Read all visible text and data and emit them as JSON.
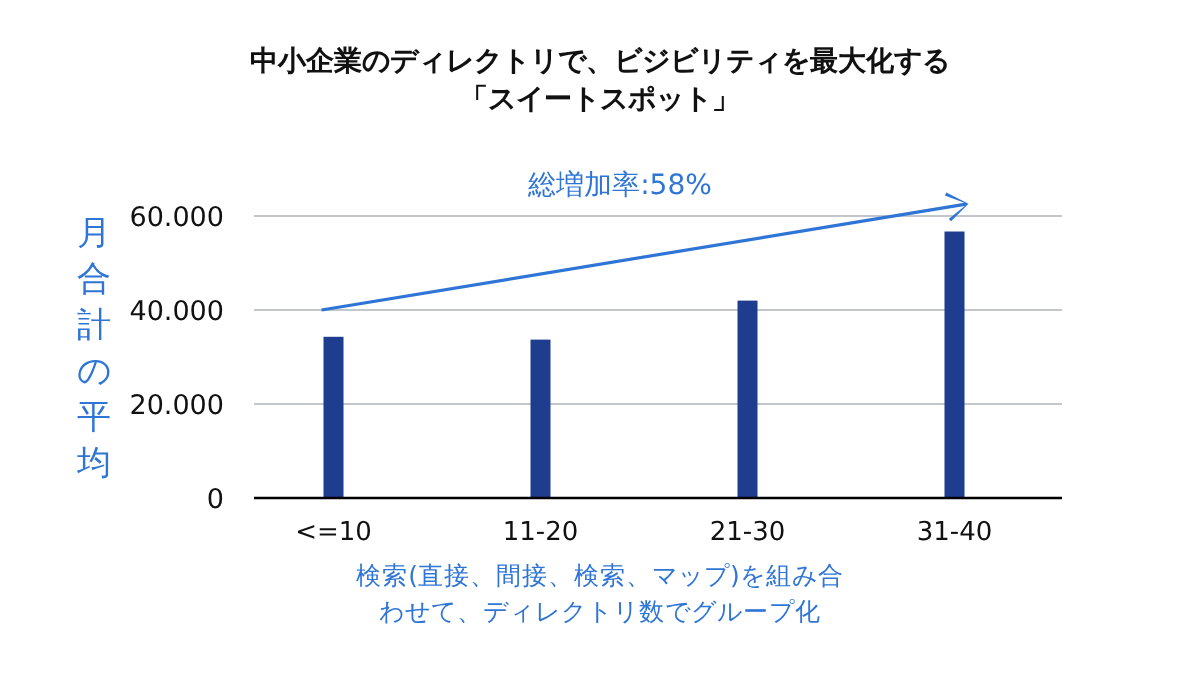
{
  "chart_data": {
    "type": "bar",
    "title": "中小企業のディレクトリで、ビジビリティを最大化する「スイートスポット」",
    "ylabel": "月合計の平均",
    "xlabel": "検索(直接、間接、検索、マップ)を組み合わせて、ディレクトリ数でグループ化",
    "annotations": [
      "総増加率:58%"
    ],
    "categories": [
      "<=10",
      "11-20",
      "21-30",
      "31-40"
    ],
    "values": [
      34300,
      33700,
      42000,
      56700
    ],
    "color": "#1f3d8f",
    "ylim": [
      0,
      60000
    ],
    "yticks": [
      {
        "value": 0,
        "label": "0"
      },
      {
        "value": 20000,
        "label": "20.000"
      },
      {
        "value": 40000,
        "label": "40.000"
      },
      {
        "value": 60000,
        "label": "60.000"
      }
    ],
    "grid": "y"
  }
}
